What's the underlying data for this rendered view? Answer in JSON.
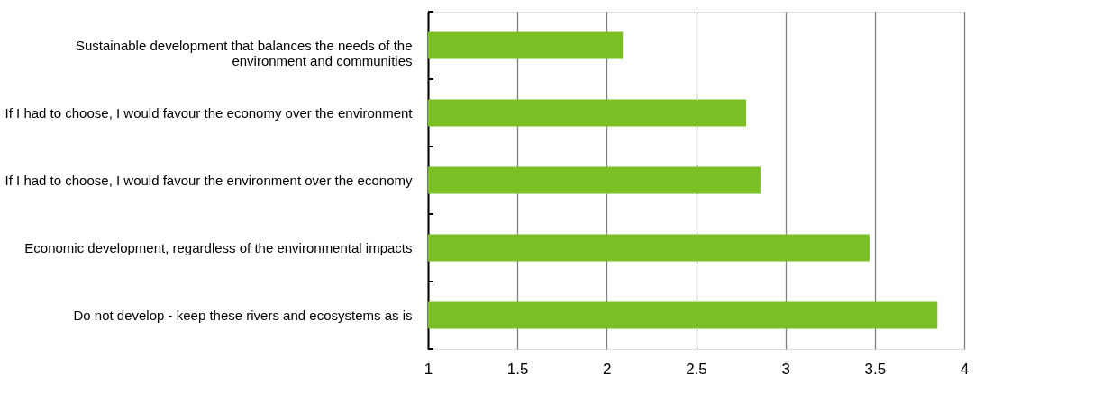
{
  "chart_data": {
    "type": "bar",
    "orientation": "horizontal",
    "categories": [
      "Sustainable development that balances the needs of the environment and communities",
      "If I had to choose, I would favour the economy over the environment",
      "If I had to choose, I would favour the environment over the economy",
      "Economic development, regardless of the environmental impacts",
      "Do not develop - keep these rivers and ecosystems as is"
    ],
    "values": [
      2.09,
      2.78,
      2.86,
      3.47,
      3.85
    ],
    "color": "#7abf24",
    "xlim": [
      1,
      4
    ],
    "xticks": [
      1,
      1.5,
      2,
      2.5,
      3,
      3.5,
      4
    ],
    "grid": "x"
  }
}
